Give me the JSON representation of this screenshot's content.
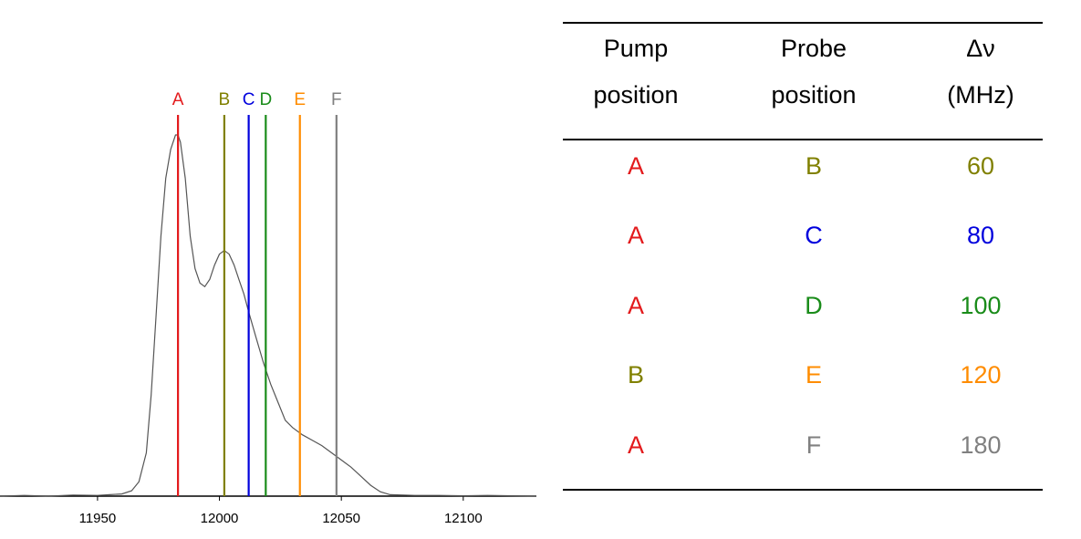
{
  "chart_data": {
    "type": "line",
    "xlim": [
      11910,
      12130
    ],
    "xticks": [
      11950,
      12000,
      12050,
      12100
    ],
    "xtick_labels": [
      "11950",
      "12000",
      "12050",
      "12100"
    ],
    "ylim": [
      0,
      1.0
    ],
    "series": [
      {
        "color": "#555555",
        "x": [
          11910,
          11920,
          11930,
          11940,
          11950,
          11955,
          11960,
          11964,
          11967,
          11970,
          11972,
          11974,
          11976,
          11978,
          11980,
          11982,
          11983,
          11984,
          11986,
          11988,
          11990,
          11992,
          11994,
          11996,
          11998,
          12000,
          12002,
          12004,
          12006,
          12008,
          12010,
          12012,
          12015,
          12018,
          12021,
          12024,
          12027,
          12030,
          12034,
          12038,
          12042,
          12046,
          12050,
          12054,
          12058,
          12062,
          12066,
          12070,
          12080,
          12090,
          12100,
          12110,
          12120,
          12130
        ],
        "y": [
          0.0,
          0.002,
          0.0,
          0.003,
          0.002,
          0.004,
          0.006,
          0.015,
          0.04,
          0.12,
          0.28,
          0.5,
          0.72,
          0.88,
          0.96,
          1.0,
          1.0,
          0.98,
          0.88,
          0.72,
          0.63,
          0.59,
          0.58,
          0.6,
          0.64,
          0.67,
          0.68,
          0.67,
          0.64,
          0.6,
          0.56,
          0.51,
          0.44,
          0.37,
          0.31,
          0.26,
          0.21,
          0.19,
          0.17,
          0.155,
          0.14,
          0.12,
          0.1,
          0.08,
          0.055,
          0.03,
          0.012,
          0.004,
          0.002,
          0.002,
          0.001,
          0.002,
          0.001,
          0.0
        ]
      }
    ],
    "markers": [
      {
        "label": "A",
        "x": 11983,
        "color": "#e31a1c"
      },
      {
        "label": "B",
        "x": 12002,
        "color": "#808000"
      },
      {
        "label": "C",
        "x": 12012,
        "color": "#0000dd"
      },
      {
        "label": "D",
        "x": 12019,
        "color": "#1a8c1a"
      },
      {
        "label": "E",
        "x": 12033,
        "color": "#ff8c00"
      },
      {
        "label": "F",
        "x": 12048,
        "color": "#808080"
      }
    ],
    "grid": false
  },
  "table": {
    "headers": [
      {
        "line1": "Pump",
        "line2": "position"
      },
      {
        "line1": "Probe",
        "line2": "position"
      },
      {
        "line1": "Δν",
        "line2": "(MHz)"
      }
    ],
    "rows": [
      {
        "pump": "A",
        "pump_color": "#e31a1c",
        "probe": "B",
        "probe_color": "#808000",
        "delta": "60",
        "delta_color": "#808000"
      },
      {
        "pump": "A",
        "pump_color": "#e31a1c",
        "probe": "C",
        "probe_color": "#0000dd",
        "delta": "80",
        "delta_color": "#0000dd"
      },
      {
        "pump": "A",
        "pump_color": "#e31a1c",
        "probe": "D",
        "probe_color": "#1a8c1a",
        "delta": "100",
        "delta_color": "#1a8c1a"
      },
      {
        "pump": "B",
        "pump_color": "#808000",
        "probe": "E",
        "probe_color": "#ff8c00",
        "delta": "120",
        "delta_color": "#ff8c00"
      },
      {
        "pump": "A",
        "pump_color": "#e31a1c",
        "probe": "F",
        "probe_color": "#808080",
        "delta": "180",
        "delta_color": "#808080"
      }
    ]
  }
}
